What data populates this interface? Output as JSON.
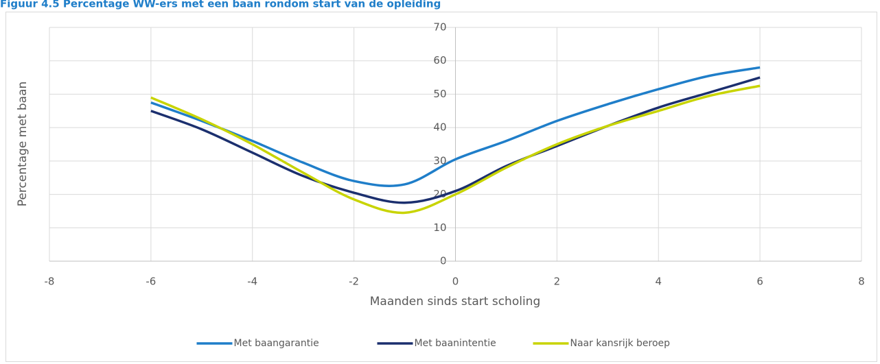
{
  "chart_data": {
    "type": "line",
    "title": "Figuur 4.5 Percentage WW-ers met een baan rondom start van de opleiding",
    "x_label": "Maanden sinds start scholing",
    "y_label": "Percentage met baan",
    "x": [
      -6,
      -5,
      -4,
      -3,
      -2,
      -1,
      0,
      1,
      2,
      3,
      4,
      5,
      6
    ],
    "series": [
      {
        "name": "Met baangarantie",
        "color": "#1f7ec9",
        "values": [
          47.5,
          42,
          36,
          29.5,
          24,
          23,
          30.5,
          36,
          42,
          47,
          51.5,
          55.5,
          58
        ]
      },
      {
        "name": "Met baanintentie",
        "color": "#1b2f6e",
        "values": [
          45,
          39.5,
          32.5,
          25.5,
          20.5,
          17.5,
          21,
          28.5,
          34.5,
          40.5,
          46,
          50.5,
          55
        ]
      },
      {
        "name": "Naar kansrijk beroep",
        "color": "#c8d400",
        "values": [
          49,
          42.5,
          35,
          26.5,
          18.5,
          14.5,
          20,
          28,
          35,
          40.5,
          45,
          49.5,
          52.5
        ]
      }
    ],
    "xlim": [
      -8,
      8
    ],
    "xticks": [
      -8,
      -6,
      -4,
      -2,
      0,
      2,
      4,
      6,
      8
    ],
    "ylim": [
      0,
      70
    ],
    "yticks": [
      0,
      10,
      20,
      30,
      40,
      50,
      60,
      70
    ],
    "grid": true,
    "smooth": true,
    "legend": "bottom"
  }
}
